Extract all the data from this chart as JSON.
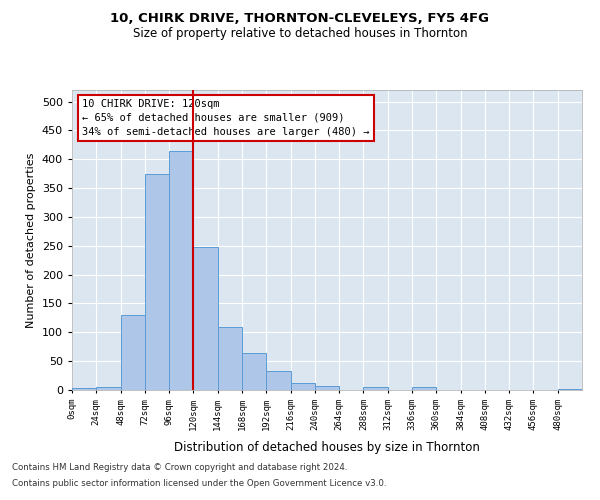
{
  "title1": "10, CHIRK DRIVE, THORNTON-CLEVELEYS, FY5 4FG",
  "title2": "Size of property relative to detached houses in Thornton",
  "xlabel": "Distribution of detached houses by size in Thornton",
  "ylabel": "Number of detached properties",
  "footnote1": "Contains HM Land Registry data © Crown copyright and database right 2024.",
  "footnote2": "Contains public sector information licensed under the Open Government Licence v3.0.",
  "bin_labels": [
    "0sqm",
    "24sqm",
    "48sqm",
    "72sqm",
    "96sqm",
    "120sqm",
    "144sqm",
    "168sqm",
    "192sqm",
    "216sqm",
    "240sqm",
    "264sqm",
    "288sqm",
    "312sqm",
    "336sqm",
    "360sqm",
    "384sqm",
    "408sqm",
    "432sqm",
    "456sqm",
    "480sqm"
  ],
  "bar_values": [
    3,
    6,
    130,
    375,
    415,
    247,
    110,
    65,
    33,
    13,
    7,
    0,
    5,
    0,
    6,
    0,
    0,
    0,
    0,
    0,
    2
  ],
  "bar_color": "#aec6e8",
  "bar_edge_color": "#5b9bd5",
  "red_line_x": 5,
  "annotation_title": "10 CHIRK DRIVE: 120sqm",
  "annotation_line1": "← 65% of detached houses are smaller (909)",
  "annotation_line2": "34% of semi-detached houses are larger (480) →",
  "annotation_box_color": "#ffffff",
  "annotation_box_edge": "#cc0000",
  "red_line_color": "#cc0000",
  "ylim": [
    0,
    520
  ],
  "yticks": [
    0,
    50,
    100,
    150,
    200,
    250,
    300,
    350,
    400,
    450,
    500
  ],
  "background_color": "#dce6f1",
  "fig_background": "#ffffff",
  "grid_color": "#ffffff"
}
